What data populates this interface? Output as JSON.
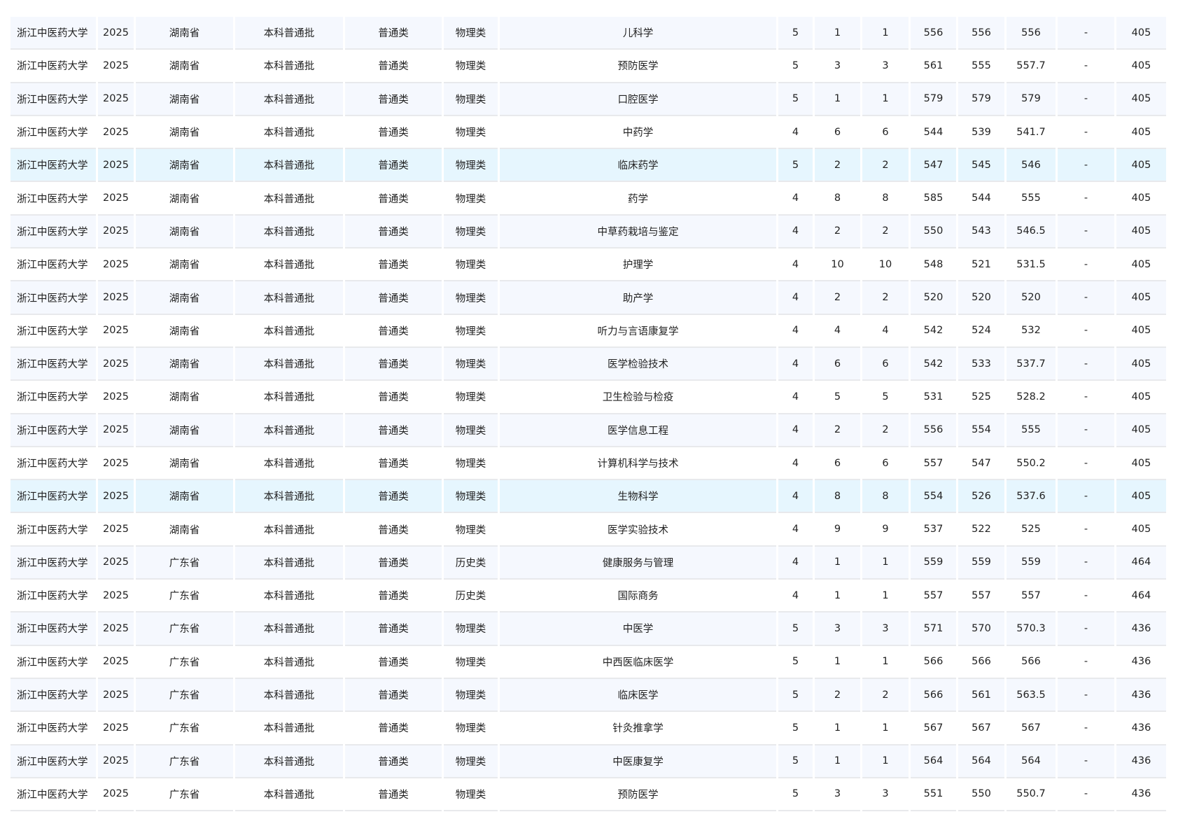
{
  "table": {
    "highlight_color": "#e6f6fe",
    "stripe_color": "#f5f8fe",
    "highlighted_rows": [
      4,
      14
    ],
    "rows": [
      [
        "浙江中医药大学",
        "2025",
        "湖南省",
        "本科普通批",
        "普通类",
        "物理类",
        "儿科学",
        "5",
        "1",
        "1",
        "556",
        "556",
        "556",
        "-",
        "405"
      ],
      [
        "浙江中医药大学",
        "2025",
        "湖南省",
        "本科普通批",
        "普通类",
        "物理类",
        "预防医学",
        "5",
        "3",
        "3",
        "561",
        "555",
        "557.7",
        "-",
        "405"
      ],
      [
        "浙江中医药大学",
        "2025",
        "湖南省",
        "本科普通批",
        "普通类",
        "物理类",
        "口腔医学",
        "5",
        "1",
        "1",
        "579",
        "579",
        "579",
        "-",
        "405"
      ],
      [
        "浙江中医药大学",
        "2025",
        "湖南省",
        "本科普通批",
        "普通类",
        "物理类",
        "中药学",
        "4",
        "6",
        "6",
        "544",
        "539",
        "541.7",
        "-",
        "405"
      ],
      [
        "浙江中医药大学",
        "2025",
        "湖南省",
        "本科普通批",
        "普通类",
        "物理类",
        "临床药学",
        "5",
        "2",
        "2",
        "547",
        "545",
        "546",
        "-",
        "405"
      ],
      [
        "浙江中医药大学",
        "2025",
        "湖南省",
        "本科普通批",
        "普通类",
        "物理类",
        "药学",
        "4",
        "8",
        "8",
        "585",
        "544",
        "555",
        "-",
        "405"
      ],
      [
        "浙江中医药大学",
        "2025",
        "湖南省",
        "本科普通批",
        "普通类",
        "物理类",
        "中草药栽培与鉴定",
        "4",
        "2",
        "2",
        "550",
        "543",
        "546.5",
        "-",
        "405"
      ],
      [
        "浙江中医药大学",
        "2025",
        "湖南省",
        "本科普通批",
        "普通类",
        "物理类",
        "护理学",
        "4",
        "10",
        "10",
        "548",
        "521",
        "531.5",
        "-",
        "405"
      ],
      [
        "浙江中医药大学",
        "2025",
        "湖南省",
        "本科普通批",
        "普通类",
        "物理类",
        "助产学",
        "4",
        "2",
        "2",
        "520",
        "520",
        "520",
        "-",
        "405"
      ],
      [
        "浙江中医药大学",
        "2025",
        "湖南省",
        "本科普通批",
        "普通类",
        "物理类",
        "听力与言语康复学",
        "4",
        "4",
        "4",
        "542",
        "524",
        "532",
        "-",
        "405"
      ],
      [
        "浙江中医药大学",
        "2025",
        "湖南省",
        "本科普通批",
        "普通类",
        "物理类",
        "医学检验技术",
        "4",
        "6",
        "6",
        "542",
        "533",
        "537.7",
        "-",
        "405"
      ],
      [
        "浙江中医药大学",
        "2025",
        "湖南省",
        "本科普通批",
        "普通类",
        "物理类",
        "卫生检验与检疫",
        "4",
        "5",
        "5",
        "531",
        "525",
        "528.2",
        "-",
        "405"
      ],
      [
        "浙江中医药大学",
        "2025",
        "湖南省",
        "本科普通批",
        "普通类",
        "物理类",
        "医学信息工程",
        "4",
        "2",
        "2",
        "556",
        "554",
        "555",
        "-",
        "405"
      ],
      [
        "浙江中医药大学",
        "2025",
        "湖南省",
        "本科普通批",
        "普通类",
        "物理类",
        "计算机科学与技术",
        "4",
        "6",
        "6",
        "557",
        "547",
        "550.2",
        "-",
        "405"
      ],
      [
        "浙江中医药大学",
        "2025",
        "湖南省",
        "本科普通批",
        "普通类",
        "物理类",
        "生物科学",
        "4",
        "8",
        "8",
        "554",
        "526",
        "537.6",
        "-",
        "405"
      ],
      [
        "浙江中医药大学",
        "2025",
        "湖南省",
        "本科普通批",
        "普通类",
        "物理类",
        "医学实验技术",
        "4",
        "9",
        "9",
        "537",
        "522",
        "525",
        "-",
        "405"
      ],
      [
        "浙江中医药大学",
        "2025",
        "广东省",
        "本科普通批",
        "普通类",
        "历史类",
        "健康服务与管理",
        "4",
        "1",
        "1",
        "559",
        "559",
        "559",
        "-",
        "464"
      ],
      [
        "浙江中医药大学",
        "2025",
        "广东省",
        "本科普通批",
        "普通类",
        "历史类",
        "国际商务",
        "4",
        "1",
        "1",
        "557",
        "557",
        "557",
        "-",
        "464"
      ],
      [
        "浙江中医药大学",
        "2025",
        "广东省",
        "本科普通批",
        "普通类",
        "物理类",
        "中医学",
        "5",
        "3",
        "3",
        "571",
        "570",
        "570.3",
        "-",
        "436"
      ],
      [
        "浙江中医药大学",
        "2025",
        "广东省",
        "本科普通批",
        "普通类",
        "物理类",
        "中西医临床医学",
        "5",
        "1",
        "1",
        "566",
        "566",
        "566",
        "-",
        "436"
      ],
      [
        "浙江中医药大学",
        "2025",
        "广东省",
        "本科普通批",
        "普通类",
        "物理类",
        "临床医学",
        "5",
        "2",
        "2",
        "566",
        "561",
        "563.5",
        "-",
        "436"
      ],
      [
        "浙江中医药大学",
        "2025",
        "广东省",
        "本科普通批",
        "普通类",
        "物理类",
        "针灸推拿学",
        "5",
        "1",
        "1",
        "567",
        "567",
        "567",
        "-",
        "436"
      ],
      [
        "浙江中医药大学",
        "2025",
        "广东省",
        "本科普通批",
        "普通类",
        "物理类",
        "中医康复学",
        "5",
        "1",
        "1",
        "564",
        "564",
        "564",
        "-",
        "436"
      ],
      [
        "浙江中医药大学",
        "2025",
        "广东省",
        "本科普通批",
        "普通类",
        "物理类",
        "预防医学",
        "5",
        "3",
        "3",
        "551",
        "550",
        "550.7",
        "-",
        "436"
      ]
    ]
  }
}
